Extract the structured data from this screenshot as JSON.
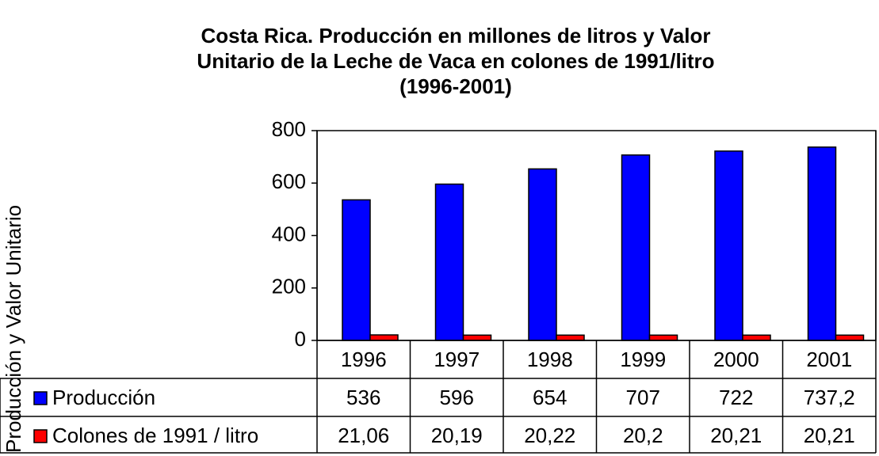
{
  "chart_data": {
    "type": "bar",
    "title": [
      "Costa Rica.  Producción en millones de litros y Valor",
      "Unitario de la Leche de Vaca en colones de 1991/litro",
      "(1996-2001)"
    ],
    "y_label": "Producción y Valor Unitario",
    "categories": [
      "1996",
      "1997",
      "1998",
      "1999",
      "2000",
      "2001"
    ],
    "series": [
      {
        "name": "Producción",
        "color": "#0000ff",
        "values": [
          536,
          596,
          654,
          707,
          722,
          737.2
        ],
        "value_labels": [
          "536",
          "596",
          "654",
          "707",
          "722",
          "737,2"
        ]
      },
      {
        "name": "Colones de 1991 / litro",
        "color": "#ff0000",
        "values": [
          21.06,
          20.19,
          20.22,
          20.2,
          20.21,
          20.21
        ],
        "value_labels": [
          "21,06",
          "20,19",
          "20,22",
          "20,2",
          "20,21",
          "20,21"
        ]
      }
    ],
    "ylim": [
      0,
      800
    ],
    "yticks": [
      0,
      200,
      400,
      600,
      800
    ],
    "grid": false,
    "legend": "table"
  }
}
